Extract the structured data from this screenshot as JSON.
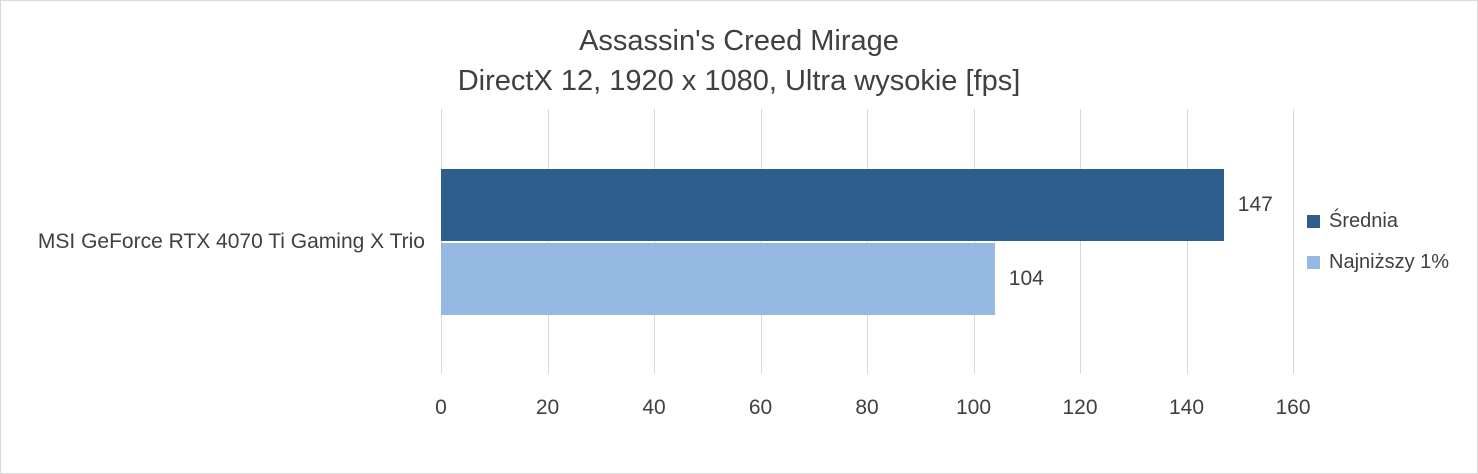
{
  "title": {
    "line1": "Assassin's Creed Mirage",
    "line2": "DirectX 12, 1920 x 1080, Ultra wysokie [fps]"
  },
  "chart_data": {
    "type": "bar",
    "orientation": "horizontal",
    "title": "Assassin's Creed Mirage",
    "subtitle": "DirectX 12, 1920 x 1080, Ultra wysokie [fps]",
    "categories": [
      "MSI GeForce RTX 4070 Ti Gaming X Trio"
    ],
    "series": [
      {
        "name": "Średnia",
        "values": [
          147
        ],
        "color": "#2f5d8c"
      },
      {
        "name": "Najniższy 1%",
        "values": [
          104
        ],
        "color": "#96b9e2"
      }
    ],
    "xlim": [
      0,
      160
    ],
    "x_ticks": [
      0,
      20,
      40,
      60,
      80,
      100,
      120,
      140,
      160
    ],
    "xlabel": "",
    "ylabel": "",
    "grid": true,
    "legend_position": "right"
  },
  "colors": {
    "gridline": "#d9d9d9",
    "text": "#404040",
    "background": "#ffffff"
  }
}
